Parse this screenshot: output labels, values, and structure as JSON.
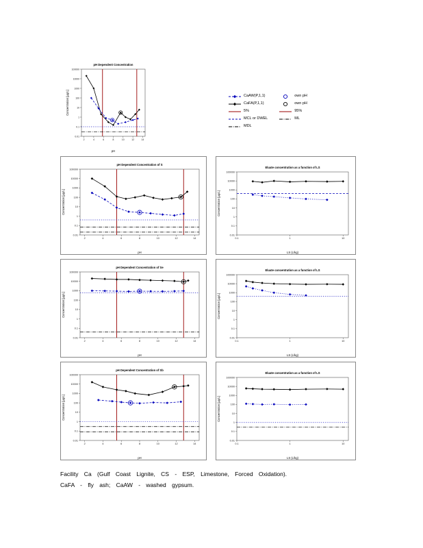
{
  "caption": {
    "line1": "Facility Ca (Gulf Coast Lignite, CS - ESP, Limestone, Forced Oxidation).",
    "line2": "CaFA - fly ash; CaAW - washed gypsum."
  },
  "legend": {
    "columns": [
      {
        "items": [
          {
            "label": "CaAW(P,1,1)",
            "line": "dash",
            "color": "#0000bb",
            "marker": "diamond"
          },
          {
            "label": "CaFA(P,1,1)",
            "line": "solid",
            "color": "#000000",
            "marker": "diamond"
          },
          {
            "label": "5%",
            "line": "solid",
            "color": "#990000",
            "marker": "none"
          },
          {
            "label": "MCL or DWEL",
            "line": "dash",
            "color": "#0000bb",
            "marker": "none"
          },
          {
            "label": "MDL",
            "line": "dashdot",
            "color": "#000000",
            "marker": "none"
          }
        ]
      },
      {
        "items": [
          {
            "label": "own pH",
            "line": "none",
            "color": "#0000bb",
            "marker": "circle"
          },
          {
            "label": "own pH",
            "line": "none",
            "color": "#000000",
            "marker": "circle"
          },
          {
            "label": "95%",
            "line": "solid",
            "color": "#990000",
            "marker": "none"
          },
          {
            "label": "ML",
            "line": "dashdot",
            "color": "#000000",
            "marker": "none"
          }
        ]
      }
    ]
  },
  "chart_data": [
    {
      "id": "ph-top",
      "type": "line",
      "title": "pH Dependent Concentration",
      "xlabel": "pH",
      "ylabel": "Concentration [µg/L]",
      "size": [
        125,
        140
      ],
      "plot": [
        24,
        16,
        8,
        26
      ],
      "x_scale": "linear",
      "x_range": [
        1.5,
        14.5
      ],
      "x_ticks": [
        2,
        4,
        6,
        8,
        10,
        12,
        14
      ],
      "y_log_range": [
        -2,
        5
      ],
      "y_tick_labels": [
        "100000",
        "10000",
        "1000",
        "100",
        "10",
        "1",
        "0.1",
        "0.01"
      ],
      "tick_font": 3.4,
      "marker_size": 1.5,
      "circle_r": 2.6,
      "vlines": [
        {
          "x": 5.8,
          "color": "#990000",
          "name": "5%"
        },
        {
          "x": 12.8,
          "color": "#990000",
          "name": "95%"
        }
      ],
      "hlines": [
        {
          "y": 0.1,
          "style": "dot",
          "color": "#0000bb",
          "name": "MCL or DWEL"
        },
        {
          "y": 0.03,
          "style": "dashdot",
          "color": "#000000",
          "name": "MDL"
        }
      ],
      "series": [
        {
          "name": "CaFA(P,1,1)",
          "color": "#000000",
          "line": "solid",
          "marker": "diamond",
          "x": [
            2.5,
            4,
            5.5,
            7,
            8,
            9.5,
            10.5,
            11.5,
            12.5,
            13.3
          ],
          "y": [
            20000,
            1000,
            2,
            0.3,
            0.15,
            3,
            1,
            0.6,
            2,
            6
          ],
          "circled": [
            5
          ]
        },
        {
          "name": "CaAW(P,1,1)",
          "color": "#0000bb",
          "line": "dash",
          "marker": "diamond",
          "x": [
            3.5,
            5,
            6.5,
            7.8,
            9,
            10.5,
            12,
            13
          ],
          "y": [
            100,
            8,
            0.8,
            0.5,
            0.2,
            0.3,
            0.5,
            0.7
          ],
          "circled": [
            3
          ]
        }
      ]
    },
    {
      "id": "ph-s",
      "type": "line",
      "title": "pH Dependent Concentration of S",
      "xlabel": "pH",
      "ylabel": "Concentration [µg/L]",
      "size": [
        214,
        144
      ],
      "plot": [
        28,
        18,
        12,
        30
      ],
      "x_scale": "linear",
      "x_range": [
        1.5,
        14.5
      ],
      "x_ticks": [
        2,
        4,
        6,
        8,
        10,
        12,
        14
      ],
      "y_log_range": [
        -2,
        5
      ],
      "y_tick_labels": [
        "100000",
        "10000",
        "1000",
        "100",
        "10",
        "1",
        "0.1",
        "0.01"
      ],
      "vlines": [
        {
          "x": 5.5,
          "color": "#990000",
          "name": "5%"
        },
        {
          "x": 12.8,
          "color": "#990000",
          "name": "95%"
        }
      ],
      "hlines": [
        {
          "y": 0.4,
          "style": "dot",
          "color": "#0000bb",
          "name": "MCL or DWEL"
        },
        {
          "y": 0.07,
          "style": "dashdot",
          "color": "#000000",
          "name": "ML"
        },
        {
          "y": 0.02,
          "style": "dashdot",
          "color": "#000000",
          "name": "MDL"
        }
      ],
      "series": [
        {
          "name": "CaFA(P,1,1)",
          "color": "#000000",
          "line": "solid",
          "marker": "diamond",
          "x": [
            2.8,
            4.2,
            5.5,
            6.5,
            7.5,
            8.5,
            9.5,
            10.5,
            11.5,
            12.5,
            13.2
          ],
          "y": [
            10000,
            1500,
            120,
            70,
            100,
            160,
            90,
            60,
            80,
            110,
            400
          ],
          "circled": [
            9
          ]
        },
        {
          "name": "CaAW(P,1,1)",
          "color": "#0000bb",
          "line": "dash",
          "marker": "diamond",
          "x": [
            2.8,
            4.2,
            5.5,
            6.8,
            8.0,
            9.2,
            10.5,
            11.8,
            12.8
          ],
          "y": [
            300,
            60,
            8,
            3,
            2.5,
            2,
            1.5,
            1.2,
            1.8
          ],
          "circled": [
            4
          ]
        }
      ]
    },
    {
      "id": "ls-s",
      "type": "line",
      "title": "Eluate concentration as a function of LS",
      "xlabel": "LS  (L/kg)",
      "ylabel": "Concentration [µg/L]",
      "size": [
        205,
        144
      ],
      "plot": [
        30,
        22,
        12,
        30
      ],
      "x_scale": "log",
      "x_range": [
        -1,
        1.1
      ],
      "x_ticks": [
        0.1,
        1,
        10
      ],
      "y_log_range": [
        -2,
        5
      ],
      "y_tick_labels": [
        "100000",
        "10000",
        "1000",
        "100",
        "10",
        "1",
        "0.1",
        "0.01"
      ],
      "hlines": [
        {
          "y": 400,
          "style": "dash",
          "color": "#0000bb",
          "name": "MCL or DWEL"
        }
      ],
      "series": [
        {
          "name": "CaFA(P,1,1)",
          "color": "#000000",
          "line": "solid",
          "marker": "diamond",
          "x": [
            0.2,
            0.3,
            0.5,
            1,
            2,
            5,
            10
          ],
          "y": [
            9000,
            7000,
            10000,
            8000,
            9000,
            8500,
            9000
          ],
          "circled": []
        },
        {
          "name": "CaAW(P,1,1)",
          "color": "#0000bb",
          "line": "dot",
          "marker": "diamond",
          "x": [
            0.2,
            0.3,
            0.5,
            1,
            2,
            5
          ],
          "y": [
            300,
            220,
            180,
            130,
            100,
            80
          ],
          "circled": []
        }
      ]
    },
    {
      "id": "ph-se",
      "type": "line",
      "title": "pH Dependent Concentration of Se",
      "xlabel": "pH",
      "ylabel": "Concentration [µg/L]",
      "size": [
        214,
        144
      ],
      "plot": [
        28,
        18,
        12,
        30
      ],
      "x_scale": "linear",
      "x_range": [
        1.5,
        14.5
      ],
      "x_ticks": [
        2,
        4,
        6,
        8,
        10,
        12,
        14
      ],
      "y_log_range": [
        -2,
        5
      ],
      "y_tick_labels": [
        "100000",
        "10000",
        "1000",
        "100",
        "10",
        "1",
        "0.1",
        "0.01"
      ],
      "vlines": [
        {
          "x": 5.5,
          "color": "#990000",
          "name": "5%"
        },
        {
          "x": 12.8,
          "color": "#990000",
          "name": "95%"
        }
      ],
      "hlines": [
        {
          "y": 600,
          "style": "dot",
          "color": "#0000bb",
          "name": "MCL or DWEL"
        },
        {
          "y": 0.04,
          "style": "dashdot",
          "color": "#000000",
          "name": "MDL"
        }
      ],
      "series": [
        {
          "name": "CaFA(P,1,1)",
          "color": "#000000",
          "line": "solid",
          "marker": "diamond",
          "x": [
            2.8,
            4.2,
            5.5,
            6.8,
            8,
            9.2,
            10.5,
            11.8,
            12.8,
            13.3
          ],
          "y": [
            20000,
            18000,
            16000,
            16000,
            14000,
            13000,
            12000,
            11000,
            9000,
            12000
          ],
          "circled": [
            8
          ]
        },
        {
          "name": "CaAW(P,1,1)",
          "color": "#0000bb",
          "line": "dash",
          "marker": "diamond",
          "x": [
            2.8,
            4.2,
            5.5,
            6.8,
            8,
            9.2,
            10.5,
            11.8,
            12.8
          ],
          "y": [
            1000,
            950,
            900,
            850,
            900,
            880,
            860,
            900,
            950
          ],
          "circled": [
            4
          ]
        }
      ]
    },
    {
      "id": "ls-se",
      "type": "line",
      "title": "Eluate concentration as a function of LS",
      "xlabel": "LS  (L/kg)",
      "ylabel": "Concentration [µg/L]",
      "size": [
        205,
        144
      ],
      "plot": [
        30,
        22,
        12,
        30
      ],
      "x_scale": "log",
      "x_range": [
        -1,
        1.1
      ],
      "x_ticks": [
        0.1,
        1,
        10
      ],
      "y_log_range": [
        -2,
        5
      ],
      "y_tick_labels": [
        "100000",
        "10000",
        "1000",
        "100",
        "10",
        "1",
        "0.1",
        "0.01"
      ],
      "hlines": [
        {
          "y": 400,
          "style": "dot",
          "color": "#0000bb",
          "name": "MCL or DWEL"
        }
      ],
      "series": [
        {
          "name": "CaFA(P,1,1)",
          "color": "#000000",
          "line": "solid",
          "marker": "diamond",
          "x": [
            0.15,
            0.2,
            0.3,
            0.5,
            1,
            2,
            5,
            10
          ],
          "y": [
            20000,
            15000,
            12000,
            10000,
            9000,
            8500,
            8800,
            8500
          ],
          "circled": []
        },
        {
          "name": "CaAW(P,1,1)",
          "color": "#0000bb",
          "line": "dot",
          "marker": "diamond",
          "x": [
            0.15,
            0.2,
            0.3,
            0.5,
            1,
            2
          ],
          "y": [
            5000,
            3000,
            1800,
            1000,
            650,
            500
          ],
          "circled": []
        }
      ]
    },
    {
      "id": "ph-sb",
      "type": "line",
      "title": "pH Dependent Concentration of Sb",
      "xlabel": "pH",
      "ylabel": "Concentration [µg/L]",
      "size": [
        214,
        144
      ],
      "plot": [
        28,
        18,
        12,
        30
      ],
      "x_scale": "linear",
      "x_range": [
        1.5,
        14.5
      ],
      "x_ticks": [
        2,
        4,
        6,
        8,
        10,
        12,
        14
      ],
      "y_log_range": [
        -2,
        5
      ],
      "y_tick_labels": [
        "100000",
        "10000",
        "1000",
        "100",
        "10",
        "1",
        "0.1",
        "0.01"
      ],
      "vlines": [
        {
          "x": 5.5,
          "color": "#990000",
          "name": "5%"
        },
        {
          "x": 12.8,
          "color": "#990000",
          "name": "95%"
        }
      ],
      "hlines": [
        {
          "y": 1.0,
          "style": "dot",
          "color": "#0000bb",
          "name": "MCL or DWEL"
        },
        {
          "y": 0.3,
          "style": "dashdot",
          "color": "#000000",
          "name": "ML"
        },
        {
          "y": 0.08,
          "style": "dashdot",
          "color": "#000000",
          "name": "MDL"
        }
      ],
      "series": [
        {
          "name": "CaFA(P,1,1)",
          "color": "#000000",
          "line": "solid",
          "marker": "diamond",
          "x": [
            2.8,
            4,
            5.5,
            6.5,
            7.5,
            9,
            10.5,
            11.8,
            12.8,
            13.3
          ],
          "y": [
            16000,
            5000,
            2500,
            1800,
            1000,
            700,
            1500,
            5000,
            6000,
            7000
          ],
          "circled": [
            7
          ]
        },
        {
          "name": "CaAW(P,1,1)",
          "color": "#0000bb",
          "line": "dash",
          "marker": "diamond",
          "x": [
            3.5,
            5,
            6,
            7,
            8,
            9.5,
            11,
            12.5
          ],
          "y": [
            200,
            150,
            120,
            100,
            90,
            110,
            100,
            130
          ],
          "circled": [
            3
          ]
        }
      ]
    },
    {
      "id": "ls-sb",
      "type": "line",
      "title": "Eluate concentration as a function of LS",
      "xlabel": "LS  (L/kg)",
      "ylabel": "Concentration [µg/L]",
      "size": [
        205,
        144
      ],
      "plot": [
        30,
        22,
        12,
        30
      ],
      "x_scale": "log",
      "x_range": [
        -1,
        1.1
      ],
      "x_ticks": [
        0.1,
        1,
        10
      ],
      "y_log_range": [
        -2,
        5
      ],
      "y_tick_labels": [
        "100000",
        "10000",
        "1000",
        "100",
        "10",
        "1",
        "0.1",
        "0.01"
      ],
      "hlines": [
        {
          "y": 1.0,
          "style": "dot",
          "color": "#0000bb",
          "name": "MCL or DWEL"
        },
        {
          "y": 0.3,
          "style": "dashdot",
          "color": "#000000",
          "name": "ML"
        }
      ],
      "series": [
        {
          "name": "CaFA(P,1,1)",
          "color": "#000000",
          "line": "solid",
          "marker": "diamond",
          "x": [
            0.15,
            0.2,
            0.3,
            0.5,
            1,
            2,
            5,
            10
          ],
          "y": [
            6000,
            5500,
            5000,
            4800,
            4500,
            5000,
            5200,
            5000
          ],
          "circled": []
        },
        {
          "name": "CaAW(P,1,1)",
          "color": "#0000bb",
          "line": "dot",
          "marker": "diamond",
          "x": [
            0.15,
            0.2,
            0.3,
            0.5,
            1,
            2
          ],
          "y": [
            120,
            110,
            100,
            105,
            95,
            100
          ],
          "circled": []
        }
      ]
    }
  ]
}
